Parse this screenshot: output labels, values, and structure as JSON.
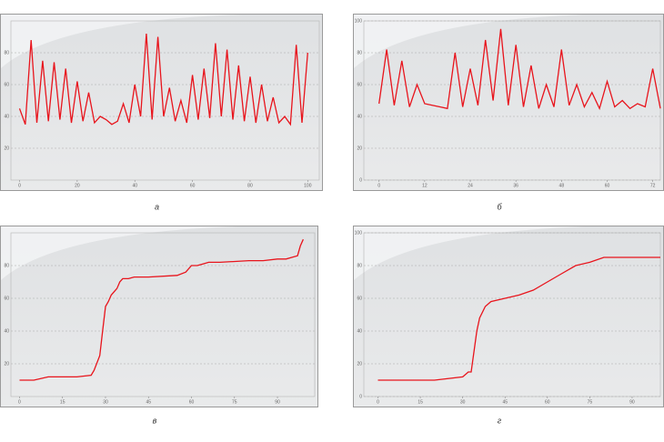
{
  "chart_data": [
    {
      "type": "line",
      "title": "а",
      "color": "#e8141c",
      "grid": true,
      "x": [
        0,
        2,
        4,
        6,
        8,
        10,
        12,
        14,
        16,
        18,
        20,
        22,
        24,
        26,
        28,
        30,
        32,
        34,
        36,
        38,
        40,
        42,
        44,
        46,
        48,
        50,
        52,
        54,
        56,
        58,
        60,
        62,
        64,
        66,
        68,
        70,
        72,
        74,
        76,
        78,
        80,
        82,
        84,
        86,
        88,
        90,
        92,
        94,
        96,
        98,
        100
      ],
      "values": [
        45,
        35,
        88,
        36,
        75,
        37,
        74,
        38,
        70,
        36,
        62,
        37,
        55,
        36,
        40,
        38,
        35,
        37,
        48,
        36,
        60,
        40,
        92,
        38,
        90,
        40,
        58,
        37,
        50,
        36,
        66,
        38,
        70,
        39,
        86,
        40,
        82,
        38,
        72,
        37,
        65,
        36,
        60,
        37,
        52,
        36,
        40,
        35,
        85,
        36,
        80
      ],
      "xlim": [
        -3,
        104
      ],
      "ylim": [
        0,
        100
      ],
      "xticks": [
        0,
        20,
        40,
        60,
        80,
        100
      ],
      "yticks": [
        20,
        40,
        60,
        80
      ]
    },
    {
      "type": "line",
      "title": "б",
      "color": "#e8141c",
      "grid": true,
      "x": [
        0,
        2,
        4,
        6,
        8,
        10,
        12,
        14,
        16,
        18,
        20,
        22,
        24,
        26,
        28,
        30,
        32,
        34,
        36,
        38,
        40,
        42,
        44,
        46,
        48,
        50,
        52,
        54,
        56,
        58,
        60,
        62,
        64,
        66,
        68,
        70,
        72,
        74
      ],
      "values": [
        48,
        82,
        47,
        75,
        46,
        60,
        48,
        47,
        46,
        45,
        80,
        46,
        70,
        47,
        88,
        50,
        95,
        47,
        85,
        46,
        72,
        45,
        60,
        46,
        82,
        47,
        60,
        46,
        55,
        45,
        62,
        46,
        50,
        45,
        48,
        46,
        70,
        45
      ],
      "xlim": [
        -4,
        74
      ],
      "ylim": [
        0,
        100
      ],
      "xticks": [
        0,
        12,
        24,
        36,
        48,
        60,
        72
      ],
      "yticks": [
        0,
        20,
        40,
        60,
        80,
        100
      ]
    },
    {
      "type": "line",
      "title": "в",
      "color": "#e8141c",
      "grid": true,
      "x": [
        0,
        5,
        10,
        15,
        20,
        25,
        26,
        28,
        29,
        30,
        31,
        32,
        34,
        35,
        36,
        38,
        40,
        45,
        55,
        58,
        60,
        62,
        64,
        66,
        70,
        80,
        85,
        90,
        93,
        95,
        97,
        98,
        99
      ],
      "values": [
        10,
        10,
        12,
        12,
        12,
        13,
        16,
        25,
        40,
        55,
        58,
        62,
        66,
        70,
        72,
        72,
        73,
        73,
        74,
        76,
        80,
        80,
        81,
        82,
        82,
        83,
        83,
        84,
        84,
        85,
        86,
        92,
        96
      ],
      "xlim": [
        -3,
        103
      ],
      "ylim": [
        0,
        100
      ],
      "xticks": [
        0,
        15,
        30,
        45,
        60,
        75,
        90
      ],
      "yticks": [
        20,
        40,
        60,
        80
      ]
    },
    {
      "type": "line",
      "title": "г",
      "color": "#e8141c",
      "grid": true,
      "x": [
        0,
        20,
        30,
        32,
        33,
        35,
        36,
        38,
        40,
        45,
        50,
        55,
        60,
        65,
        70,
        75,
        80,
        100
      ],
      "values": [
        10,
        10,
        12,
        15,
        15,
        40,
        48,
        55,
        58,
        60,
        62,
        65,
        70,
        75,
        80,
        82,
        85,
        85
      ],
      "xlim": [
        -5,
        100
      ],
      "ylim": [
        0,
        100
      ],
      "xticks": [
        0,
        15,
        30,
        45,
        60,
        75,
        90
      ],
      "yticks": [
        0,
        20,
        40,
        60,
        80,
        100
      ]
    }
  ]
}
